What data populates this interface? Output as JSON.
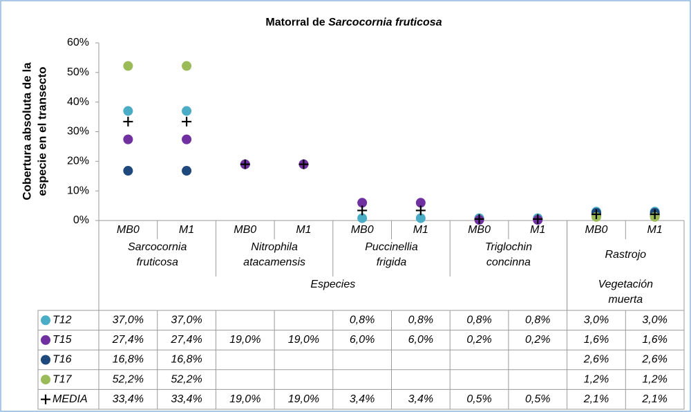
{
  "chart_data": {
    "type": "dot",
    "title": {
      "text": "Matorral de",
      "italic": "Sarcocornia fruticosa"
    },
    "y_label": [
      "Cobertura absoluta de la",
      "especie en el transecto"
    ],
    "categories": [
      "MB0",
      "M1",
      "MB0",
      "M1",
      "MB0",
      "M1",
      "MB0",
      "M1",
      "MB0",
      "M1"
    ],
    "species": [
      {
        "label": [
          "Sarcocornia",
          "fruticosa"
        ],
        "span": 2
      },
      {
        "label": [
          "Nitrophila",
          "atacamensis"
        ],
        "span": 2
      },
      {
        "label": [
          "Puccinellia",
          "frigida"
        ],
        "span": 2
      },
      {
        "label": [
          "Triglochin",
          "concinna"
        ],
        "span": 2
      },
      {
        "label": [
          "Rastrojo"
        ],
        "span": 2
      }
    ],
    "groups": [
      {
        "label": [
          "Especies"
        ],
        "span": 8
      },
      {
        "label": [
          "Vegetación",
          "muerta"
        ],
        "span": 2
      }
    ],
    "ylim": [
      0,
      60
    ],
    "yticks": [
      {
        "value": 0,
        "label": "0%"
      },
      {
        "value": 10,
        "label": "10%"
      },
      {
        "value": 20,
        "label": "20%"
      },
      {
        "value": 30,
        "label": "30%"
      },
      {
        "value": 40,
        "label": "40%"
      },
      {
        "value": 50,
        "label": "50%"
      },
      {
        "value": 60,
        "label": "60%"
      }
    ],
    "grid": false,
    "series": [
      {
        "name": "T12",
        "color": "#4bacc6",
        "marker": "circle",
        "values": [
          37.0,
          37.0,
          null,
          null,
          0.8,
          0.8,
          0.8,
          0.8,
          3.0,
          3.0
        ],
        "value_labels": [
          "37,0%",
          "37,0%",
          null,
          null,
          "0,8%",
          "0,8%",
          "0,8%",
          "0,8%",
          "3,0%",
          "3,0%"
        ]
      },
      {
        "name": "T15",
        "color": "#7030a0",
        "marker": "circle",
        "values": [
          27.4,
          27.4,
          19.0,
          19.0,
          6.0,
          6.0,
          0.2,
          0.2,
          1.6,
          1.6
        ],
        "value_labels": [
          "27,4%",
          "27,4%",
          "19,0%",
          "19,0%",
          "6,0%",
          "6,0%",
          "0,2%",
          "0,2%",
          "1,6%",
          "1,6%"
        ]
      },
      {
        "name": "T16",
        "color": "#1f497d",
        "marker": "circle",
        "values": [
          16.8,
          16.8,
          null,
          null,
          null,
          null,
          null,
          null,
          2.6,
          2.6
        ],
        "value_labels": [
          "16,8%",
          "16,8%",
          null,
          null,
          null,
          null,
          null,
          null,
          "2,6%",
          "2,6%"
        ]
      },
      {
        "name": "T17",
        "color": "#9bbb59",
        "marker": "circle",
        "values": [
          52.2,
          52.2,
          null,
          null,
          null,
          null,
          null,
          null,
          1.2,
          1.2
        ],
        "value_labels": [
          "52,2%",
          "52,2%",
          null,
          null,
          null,
          null,
          null,
          null,
          "1,2%",
          "1,2%"
        ]
      },
      {
        "name": "MEDIA",
        "color": "#000000",
        "marker": "plus",
        "values": [
          33.4,
          33.4,
          19.0,
          19.0,
          3.4,
          3.4,
          0.5,
          0.5,
          2.1,
          2.1
        ],
        "value_labels": [
          "33,4%",
          "33,4%",
          "19,0%",
          "19,0%",
          "3,4%",
          "3,4%",
          "0,5%",
          "0,5%",
          "2,1%",
          "2,1%"
        ]
      }
    ]
  }
}
